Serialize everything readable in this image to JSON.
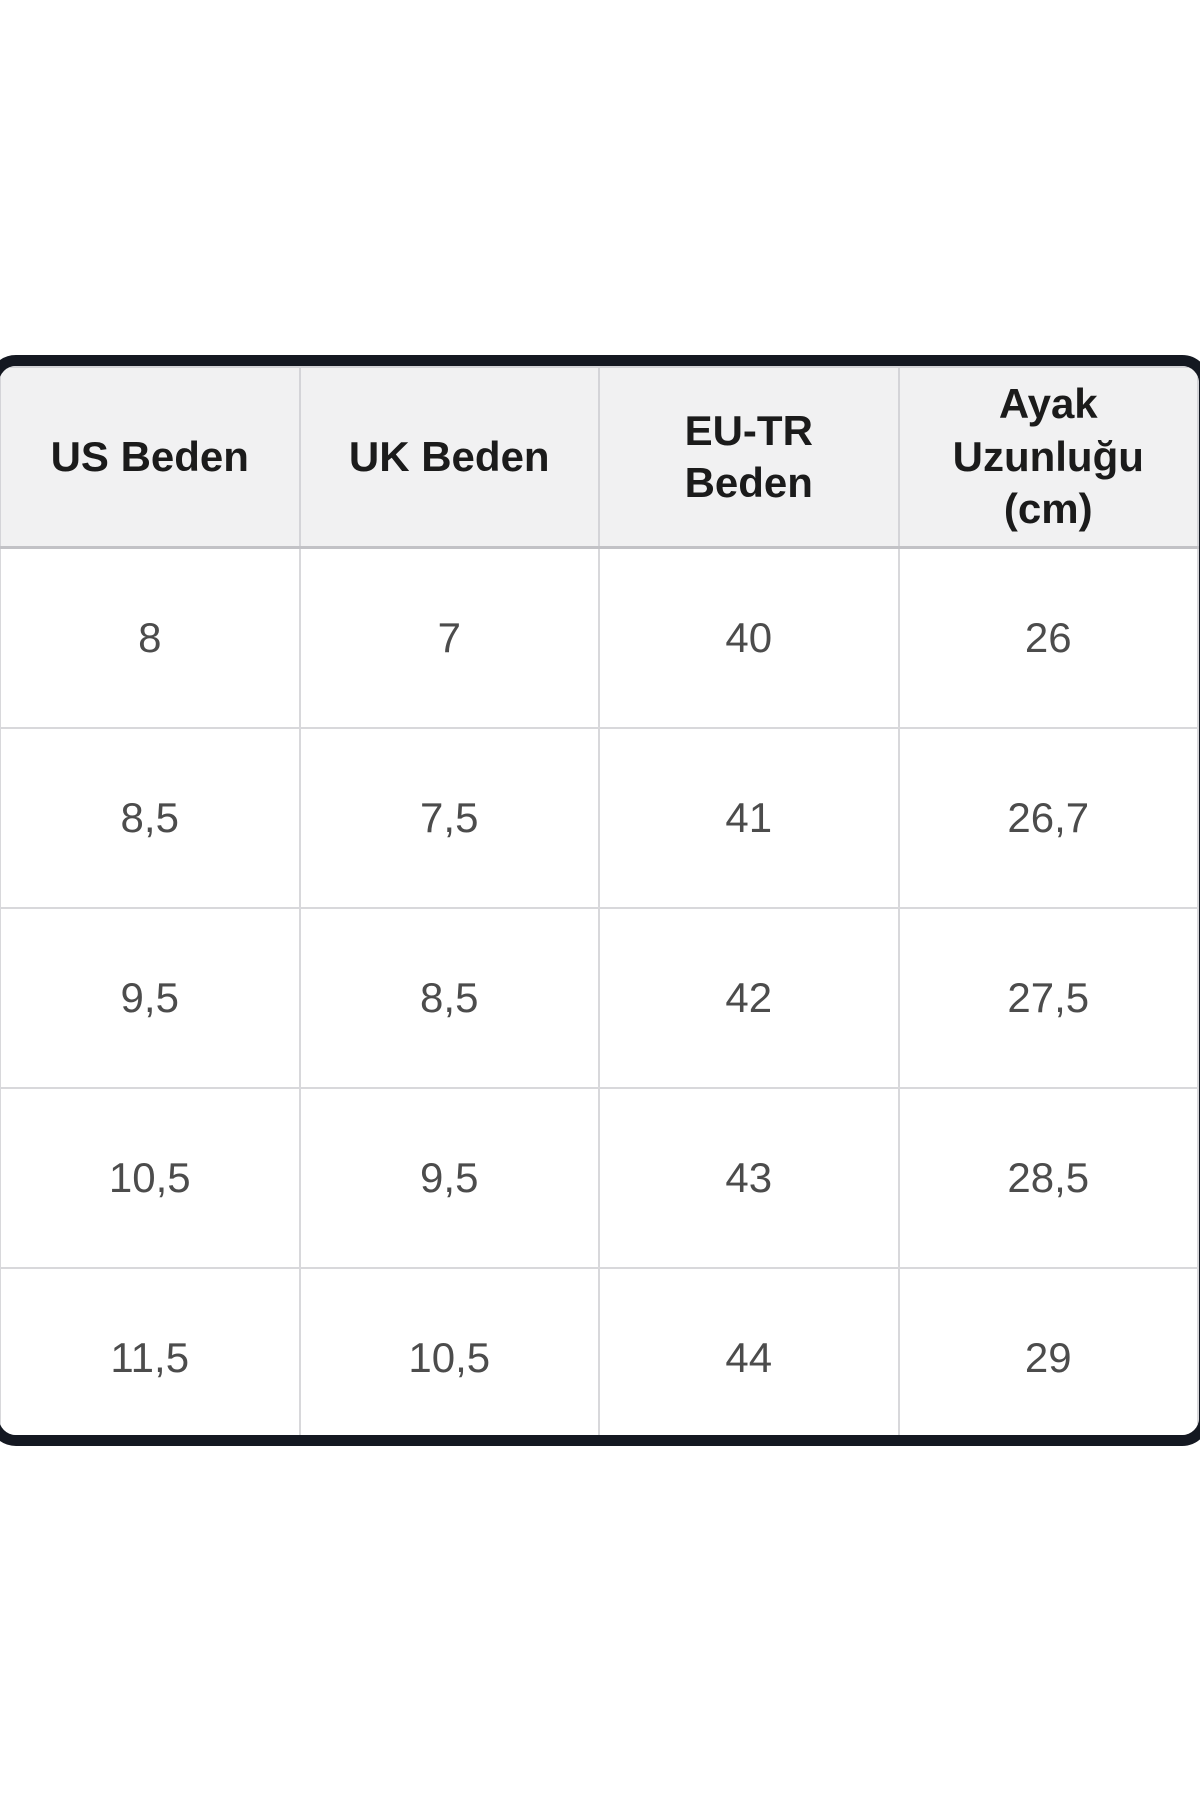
{
  "table": {
    "columns": [
      "US Beden",
      "UK Beden",
      "EU-TR Beden",
      "Ayak Uzunluğu (cm)"
    ],
    "rows": [
      [
        "8",
        "7",
        "40",
        "26"
      ],
      [
        "8,5",
        "7,5",
        "41",
        "26,7"
      ],
      [
        "9,5",
        "8,5",
        "42",
        "27,5"
      ],
      [
        "10,5",
        "9,5",
        "43",
        "28,5"
      ],
      [
        "11,5",
        "10,5",
        "44",
        "29"
      ]
    ],
    "colors": {
      "card_border": "#141821",
      "header_bg": "#f1f1f2",
      "header_text": "#1b1b1b",
      "cell_text": "#4c4c4c",
      "grid_line": "#d8d8db",
      "page_bg": "#ffffff"
    }
  },
  "chart_data": {
    "type": "table",
    "title": "Shoe size conversion chart (Turkish)",
    "columns": [
      "US Beden",
      "UK Beden",
      "EU-TR Beden",
      "Ayak Uzunluğu (cm)"
    ],
    "rows": [
      {
        "us": "8",
        "uk": "7",
        "eu_tr": "40",
        "foot_length_cm": "26"
      },
      {
        "us": "8,5",
        "uk": "7,5",
        "eu_tr": "41",
        "foot_length_cm": "26,7"
      },
      {
        "us": "9,5",
        "uk": "8,5",
        "eu_tr": "42",
        "foot_length_cm": "27,5"
      },
      {
        "us": "10,5",
        "uk": "9,5",
        "eu_tr": "43",
        "foot_length_cm": "28,5"
      },
      {
        "us": "11,5",
        "uk": "10,5",
        "eu_tr": "44",
        "foot_length_cm": "29"
      }
    ],
    "layout": {
      "grid": true,
      "header_background": "#f1f1f2",
      "outer_border": "thick dark rounded"
    }
  }
}
